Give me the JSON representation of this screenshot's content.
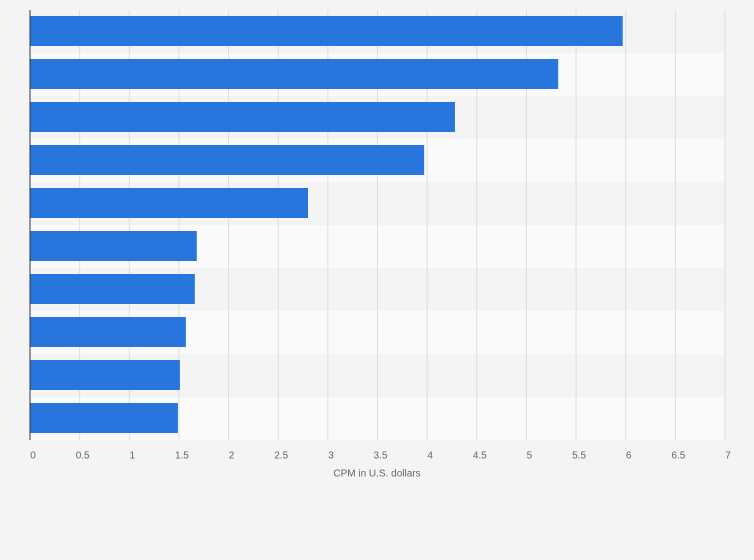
{
  "chart_data": {
    "type": "hbar",
    "categories": [
      null,
      null,
      null,
      null,
      null,
      null,
      null,
      null,
      null,
      null
    ],
    "values": [
      5.97,
      5.32,
      4.28,
      3.97,
      2.8,
      1.68,
      1.66,
      1.57,
      1.51,
      1.49
    ],
    "color": "#2876dd",
    "xlabel": "CPM in U.S. dollars",
    "xlim": [
      0,
      7
    ],
    "xticks": [
      0,
      0.5,
      1,
      1.5,
      2,
      2.5,
      3,
      3.5,
      4,
      4.5,
      5,
      5.5,
      6,
      6.5,
      7
    ],
    "grid": true
  }
}
